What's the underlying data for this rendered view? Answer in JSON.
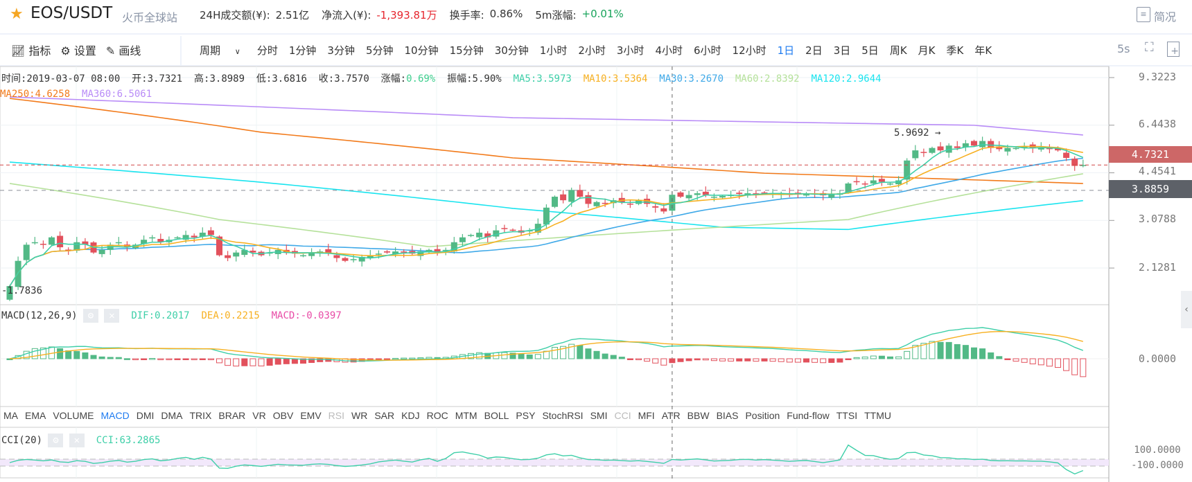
{
  "header": {
    "pair": "EOS/USDT",
    "exchange": "火币全球站",
    "volume_label": "24H成交额(¥):",
    "volume_value": "2.51亿",
    "inflow_label": "净流入(¥):",
    "inflow_value": "-1,393.81万",
    "turnover_label": "换手率:",
    "turnover_value": "0.86%",
    "change5m_label": "5m涨幅:",
    "change5m_value": "+0.01%",
    "summary_label": "简况"
  },
  "toolbar": {
    "indicators": "指标",
    "settings": "设置",
    "draw": "画线",
    "period": "周期",
    "intervals": [
      "分时",
      "1分钟",
      "3分钟",
      "5分钟",
      "10分钟",
      "15分钟",
      "30分钟",
      "1小时",
      "2小时",
      "3小时",
      "4小时",
      "6小时",
      "12小时",
      "1日",
      "2日",
      "3日",
      "5日",
      "周K",
      "月K",
      "季K",
      "年K"
    ],
    "active_interval": "1日",
    "refresh": "5s"
  },
  "info": {
    "time": "时间:2019-03-07 08:00",
    "open": "开:3.7321",
    "high": "高:3.8989",
    "low": "低:3.6816",
    "close": "收:3.7570",
    "change_label": "涨幅:",
    "change_value": "0.69%",
    "amplitude": "振幅:5.90%",
    "ma5": "MA5:3.5973",
    "ma10": "MA10:3.5364",
    "ma30": "MA30:3.2670",
    "ma60": "MA60:2.8392",
    "ma120": "MA120:2.9644",
    "ma250": "MA250:4.6258",
    "ma360": "MA360:6.5061"
  },
  "price_axis": {
    "ticks": [
      "9.3223",
      "6.4438",
      "4.4541",
      "3.0788",
      "2.1281"
    ],
    "last_price": "4.7321",
    "cross_price": "3.8859",
    "max_marker": "5.9692",
    "min_marker": "1.7836"
  },
  "macd": {
    "title": "MACD(12,26,9)",
    "dif": "DIF:0.2017",
    "dea": "DEA:0.2215",
    "macd": "MACD:-0.0397",
    "zero": "0.0000"
  },
  "indicator_tabs": [
    "MA",
    "EMA",
    "VOLUME",
    "MACD",
    "DMI",
    "DMA",
    "TRIX",
    "BRAR",
    "VR",
    "OBV",
    "EMV",
    "RSI",
    "WR",
    "SAR",
    "KDJ",
    "ROC",
    "MTM",
    "BOLL",
    "PSY",
    "StochRSI",
    "SMI",
    "CCI",
    "MFI",
    "ATR",
    "BBW",
    "BIAS",
    "Position",
    "Fund-flow",
    "TTSI",
    "TTMU"
  ],
  "cci": {
    "title": "CCI(20)",
    "value": "CCI:63.2865",
    "upper": "100.0000",
    "lower": "-100.0000"
  },
  "colors": {
    "up": "#52b986",
    "down": "#e2515c",
    "ma5": "#3ecfa8",
    "ma10": "#f7b021",
    "ma30": "#3fa9e8",
    "ma60": "#b5e19a",
    "ma120": "#19e4ef",
    "ma250": "#f27a1a",
    "ma360": "#b98cf7",
    "macd": "#e84ba6",
    "accent": "#1e7bf0"
  },
  "chart_data": {
    "type": "candlestick",
    "scale": "log",
    "crosshair_index": 79,
    "closes": [
      1.85,
      2.25,
      2.55,
      2.6,
      2.55,
      2.7,
      2.5,
      2.45,
      2.6,
      2.55,
      2.4,
      2.45,
      2.55,
      2.6,
      2.5,
      2.55,
      2.65,
      2.7,
      2.6,
      2.65,
      2.7,
      2.75,
      2.7,
      2.8,
      2.75,
      2.35,
      2.3,
      2.4,
      2.45,
      2.4,
      2.35,
      2.4,
      2.45,
      2.4,
      2.38,
      2.35,
      2.4,
      2.42,
      2.38,
      2.3,
      2.25,
      2.28,
      2.32,
      2.35,
      2.38,
      2.4,
      2.42,
      2.4,
      2.38,
      2.42,
      2.45,
      2.4,
      2.45,
      2.6,
      2.7,
      2.75,
      2.8,
      2.7,
      2.85,
      2.9,
      2.85,
      2.8,
      2.85,
      3.0,
      3.4,
      3.7,
      3.6,
      3.9,
      3.7,
      3.5,
      3.55,
      3.5,
      3.6,
      3.55,
      3.5,
      3.6,
      3.5,
      3.4,
      3.3,
      3.757,
      3.7,
      3.75,
      3.8,
      3.75,
      3.7,
      3.72,
      3.75,
      3.78,
      3.8,
      3.78,
      3.82,
      3.8,
      3.78,
      3.75,
      3.78,
      3.8,
      3.76,
      3.74,
      3.78,
      3.8,
      4.1,
      4.15,
      4.1,
      4.2,
      4.15,
      4.1,
      4.2,
      4.9,
      5.3,
      5.2,
      5.4,
      5.3,
      5.5,
      5.4,
      5.6,
      5.5,
      5.7,
      5.4,
      5.35,
      5.4,
      5.4,
      5.45,
      5.4,
      5.42,
      5.35,
      5.3,
      5.0,
      4.7,
      4.7321
    ],
    "ma_keypoints": {
      "ma60": [
        [
          0,
          4.1
        ],
        [
          25,
          3.1
        ],
        [
          50,
          2.51
        ],
        [
          70,
          2.75
        ],
        [
          100,
          3.1
        ],
        [
          128,
          4.42
        ]
      ],
      "ma120": [
        [
          0,
          4.84
        ],
        [
          30,
          4.14
        ],
        [
          60,
          3.38
        ],
        [
          85,
          2.92
        ],
        [
          100,
          2.87
        ],
        [
          128,
          3.59
        ]
      ],
      "ma250": [
        [
          0,
          7.93
        ],
        [
          30,
          6.1
        ],
        [
          60,
          5.0
        ],
        [
          90,
          4.44
        ],
        [
          128,
          4.1
        ]
      ],
      "ma360": [
        [
          0,
          8.02
        ],
        [
          60,
          6.83
        ],
        [
          90,
          6.61
        ],
        [
          115,
          6.44
        ],
        [
          128,
          5.97
        ]
      ]
    }
  }
}
